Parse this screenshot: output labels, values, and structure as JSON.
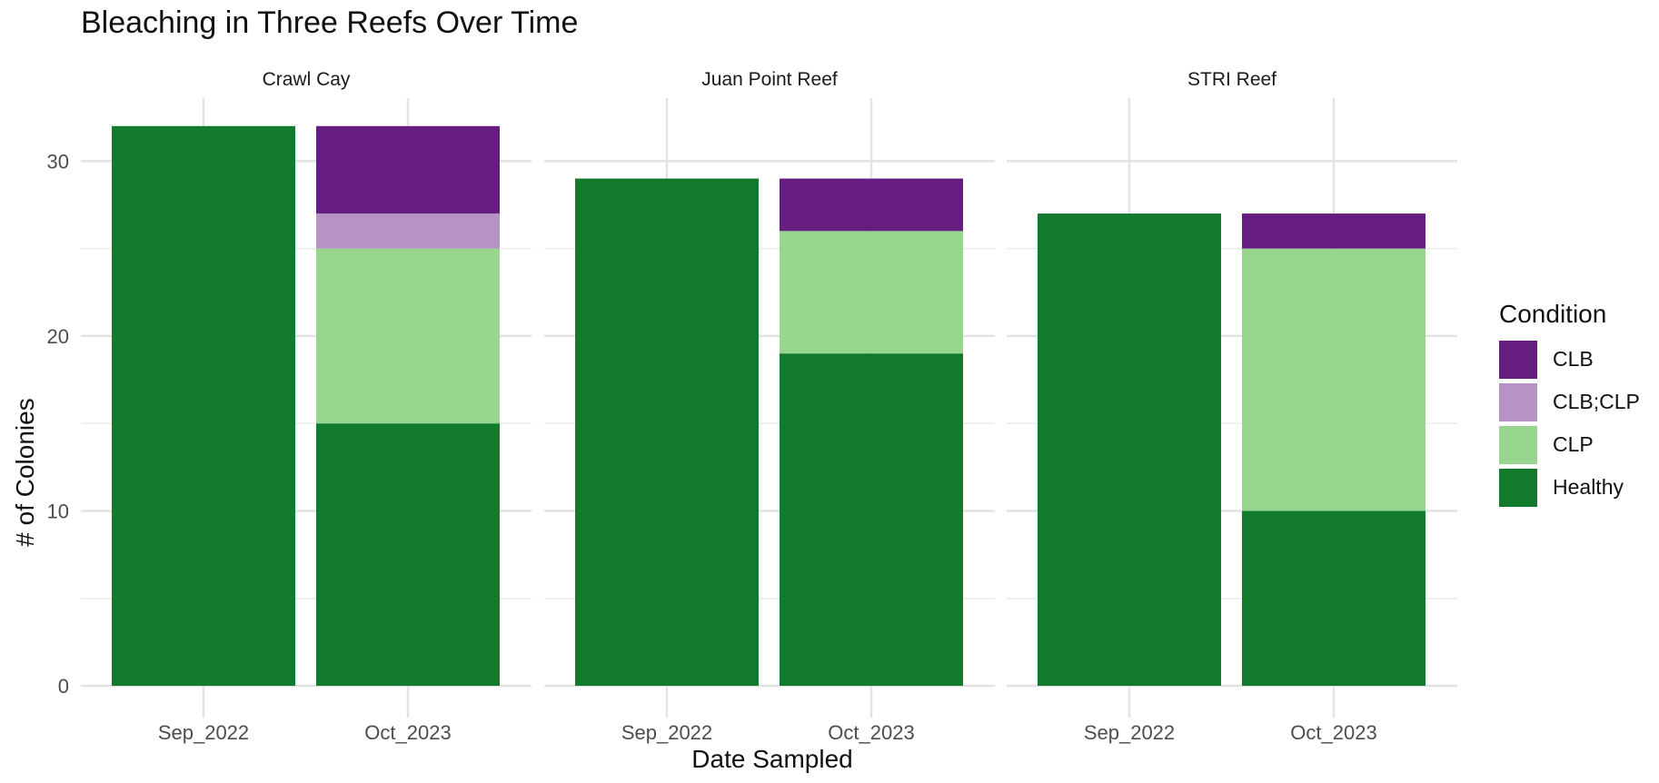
{
  "chart_data": {
    "type": "bar",
    "stacked": true,
    "title": "Bleaching in Three Reefs Over Time",
    "xlabel": "Date Sampled",
    "ylabel": "# of Colonies",
    "ylim": [
      0,
      33.6
    ],
    "yticks": [
      0,
      10,
      20,
      30
    ],
    "grid": true,
    "legend_title": "Condition",
    "legend_position": "right",
    "categories": [
      "Sep_2022",
      "Oct_2023"
    ],
    "facets": [
      {
        "name": "Crawl Cay",
        "series": [
          {
            "name": "Healthy",
            "values": [
              32,
              15
            ]
          },
          {
            "name": "CLP",
            "values": [
              0,
              10
            ]
          },
          {
            "name": "CLB;CLP",
            "values": [
              0,
              2
            ]
          },
          {
            "name": "CLB",
            "values": [
              0,
              5
            ]
          }
        ]
      },
      {
        "name": "Juan Point Reef",
        "series": [
          {
            "name": "Healthy",
            "values": [
              29,
              19
            ]
          },
          {
            "name": "CLP",
            "values": [
              0,
              7
            ]
          },
          {
            "name": "CLB;CLP",
            "values": [
              0,
              0
            ]
          },
          {
            "name": "CLB",
            "values": [
              0,
              3
            ]
          }
        ]
      },
      {
        "name": "STRI Reef",
        "series": [
          {
            "name": "Healthy",
            "values": [
              27,
              10
            ]
          },
          {
            "name": "CLP",
            "values": [
              0,
              15
            ]
          },
          {
            "name": "CLB;CLP",
            "values": [
              0,
              0
            ]
          },
          {
            "name": "CLB",
            "values": [
              0,
              2
            ]
          }
        ]
      }
    ],
    "legend": [
      {
        "name": "CLB",
        "color": "#661d80"
      },
      {
        "name": "CLB;CLP",
        "color": "#b693c4"
      },
      {
        "name": "CLP",
        "color": "#98d690"
      },
      {
        "name": "Healthy",
        "color": "#117a2d"
      }
    ]
  }
}
